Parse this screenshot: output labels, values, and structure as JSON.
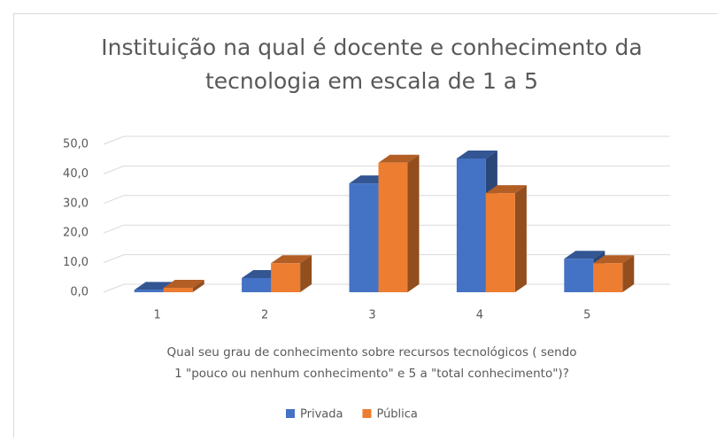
{
  "chart_data": {
    "type": "bar3d",
    "title": [
      "Instituição na qual é docente e conhecimento da",
      "tecnologia em escala de 1 a 5"
    ],
    "x_label": [
      "Qual seu grau de conhecimento sobre recursos tecnológicos ( sendo",
      "1 \"pouco ou nenhum conhecimento\" e 5 a \"total conhecimento\")?"
    ],
    "categories": [
      "1",
      "2",
      "3",
      "4",
      "5"
    ],
    "series": [
      {
        "name": "Privada",
        "color": "#4472c4",
        "values": [
          0.8,
          4.8,
          36.8,
          45.2,
          11.3
        ]
      },
      {
        "name": "Pública",
        "color": "#ed7d31",
        "values": [
          1.5,
          9.8,
          43.8,
          33.5,
          9.8
        ]
      }
    ],
    "ylim": [
      0,
      50
    ],
    "yticks": [
      {
        "value": 0,
        "label": "0,0"
      },
      {
        "value": 10,
        "label": "10,0"
      },
      {
        "value": 20,
        "label": "20,0"
      },
      {
        "value": 30,
        "label": "30,0"
      },
      {
        "value": 40,
        "label": "40,0"
      },
      {
        "value": 50,
        "label": "50,0"
      }
    ],
    "grid": true,
    "legend": "bottom"
  }
}
